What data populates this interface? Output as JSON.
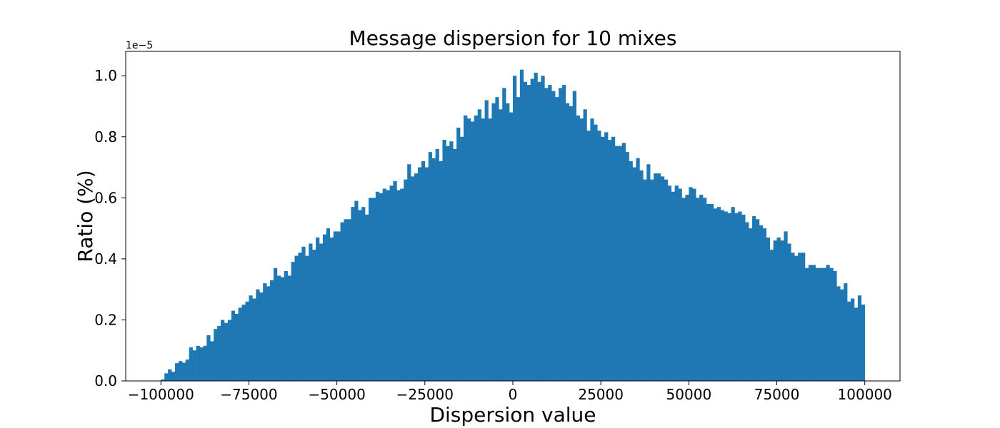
{
  "chart_data": {
    "type": "bar",
    "title": "Message dispersion for 10 mixes",
    "xlabel": "Dispersion value",
    "ylabel": "Ratio (%)",
    "y_offset_label": "1e−5",
    "xlim": [
      -110000,
      110000
    ],
    "ylim": [
      0,
      1.08
    ],
    "x_ticks": [
      -100000,
      -75000,
      -50000,
      -25000,
      0,
      25000,
      50000,
      75000,
      100000
    ],
    "x_tick_labels": [
      "−100000",
      "−75000",
      "−50000",
      "−25000",
      "0",
      "25000",
      "50000",
      "75000",
      "100000"
    ],
    "y_ticks": [
      0.0,
      0.2,
      0.4,
      0.6,
      0.8,
      1.0
    ],
    "y_tick_labels": [
      "0.0",
      "0.2",
      "0.4",
      "0.6",
      "0.8",
      "1.0"
    ],
    "grid": false,
    "bar_color": "#1f77b4",
    "bin_start": -100000,
    "bin_width": 1000,
    "values": [
      0.005,
      0.025,
      0.038,
      0.03,
      0.058,
      0.065,
      0.06,
      0.07,
      0.11,
      0.1,
      0.115,
      0.11,
      0.115,
      0.15,
      0.13,
      0.17,
      0.18,
      0.2,
      0.19,
      0.2,
      0.23,
      0.22,
      0.24,
      0.25,
      0.26,
      0.28,
      0.27,
      0.3,
      0.29,
      0.32,
      0.31,
      0.33,
      0.37,
      0.345,
      0.34,
      0.36,
      0.345,
      0.39,
      0.41,
      0.42,
      0.44,
      0.41,
      0.45,
      0.43,
      0.47,
      0.45,
      0.48,
      0.5,
      0.47,
      0.49,
      0.49,
      0.52,
      0.53,
      0.53,
      0.57,
      0.59,
      0.56,
      0.57,
      0.545,
      0.6,
      0.6,
      0.62,
      0.615,
      0.63,
      0.625,
      0.64,
      0.655,
      0.625,
      0.63,
      0.66,
      0.71,
      0.67,
      0.68,
      0.7,
      0.72,
      0.7,
      0.75,
      0.73,
      0.76,
      0.72,
      0.79,
      0.77,
      0.785,
      0.76,
      0.83,
      0.8,
      0.87,
      0.86,
      0.85,
      0.87,
      0.89,
      0.86,
      0.92,
      0.86,
      0.91,
      0.93,
      0.89,
      0.96,
      0.91,
      0.88,
      1.0,
      0.93,
      1.02,
      0.98,
      0.97,
      0.99,
      1.01,
      0.98,
      1.0,
      0.96,
      0.97,
      0.95,
      0.93,
      0.96,
      0.97,
      0.91,
      0.9,
      0.95,
      0.87,
      0.86,
      0.89,
      0.82,
      0.86,
      0.84,
      0.82,
      0.8,
      0.815,
      0.79,
      0.8,
      0.77,
      0.77,
      0.78,
      0.75,
      0.72,
      0.7,
      0.73,
      0.69,
      0.66,
      0.71,
      0.66,
      0.68,
      0.68,
      0.67,
      0.66,
      0.64,
      0.62,
      0.64,
      0.63,
      0.6,
      0.61,
      0.635,
      0.63,
      0.6,
      0.61,
      0.6,
      0.58,
      0.58,
      0.565,
      0.57,
      0.56,
      0.555,
      0.55,
      0.57,
      0.55,
      0.555,
      0.545,
      0.52,
      0.5,
      0.54,
      0.53,
      0.51,
      0.5,
      0.47,
      0.43,
      0.46,
      0.47,
      0.46,
      0.49,
      0.45,
      0.42,
      0.41,
      0.42,
      0.42,
      0.37,
      0.38,
      0.38,
      0.37,
      0.37,
      0.37,
      0.38,
      0.37,
      0.36,
      0.31,
      0.3,
      0.32,
      0.26,
      0.27,
      0.24,
      0.28,
      0.25
    ]
  }
}
